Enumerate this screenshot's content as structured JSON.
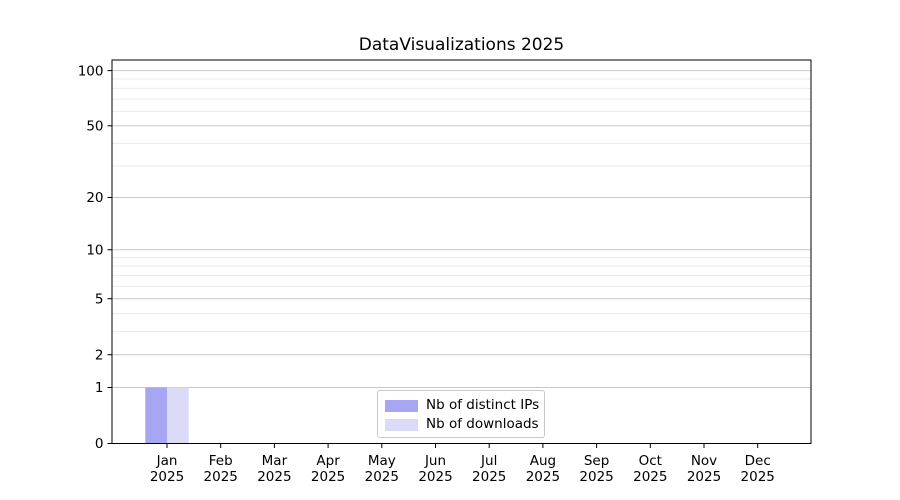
{
  "figure": {
    "background": "#ffffff"
  },
  "chart_data": {
    "type": "bar",
    "title": "DataVisualizations 2025",
    "categories": [
      "Jan 2025",
      "Feb 2025",
      "Mar 2025",
      "Apr 2025",
      "May 2025",
      "Jun 2025",
      "Jul 2025",
      "Aug 2025",
      "Sep 2025",
      "Oct 2025",
      "Nov 2025",
      "Dec 2025"
    ],
    "series": [
      {
        "name": "Nb of distinct IPs",
        "color": "#a6a6f2",
        "values": [
          1,
          0,
          0,
          0,
          0,
          0,
          0,
          0,
          0,
          0,
          0,
          0
        ]
      },
      {
        "name": "Nb of downloads",
        "color": "#dbdbf8",
        "values": [
          1,
          0,
          0,
          0,
          0,
          0,
          0,
          0,
          0,
          0,
          0,
          0
        ]
      }
    ],
    "xlabel": "",
    "ylabel": "",
    "yscale": "log1p",
    "ylim": [
      0,
      113
    ],
    "y_major_ticks": [
      0,
      1,
      2,
      5,
      10,
      20,
      50,
      100
    ],
    "y_minor_ticks": [
      3,
      4,
      6,
      7,
      8,
      9,
      30,
      40,
      60,
      70,
      80,
      90
    ],
    "grid": true,
    "legend_position": "lower center",
    "colors": {
      "spine": "#000000",
      "tick_text": "#000000",
      "grid_major": "#c9c9c9",
      "grid_minor": "#ebebeb",
      "legend_border": "#c9c9c9"
    }
  }
}
